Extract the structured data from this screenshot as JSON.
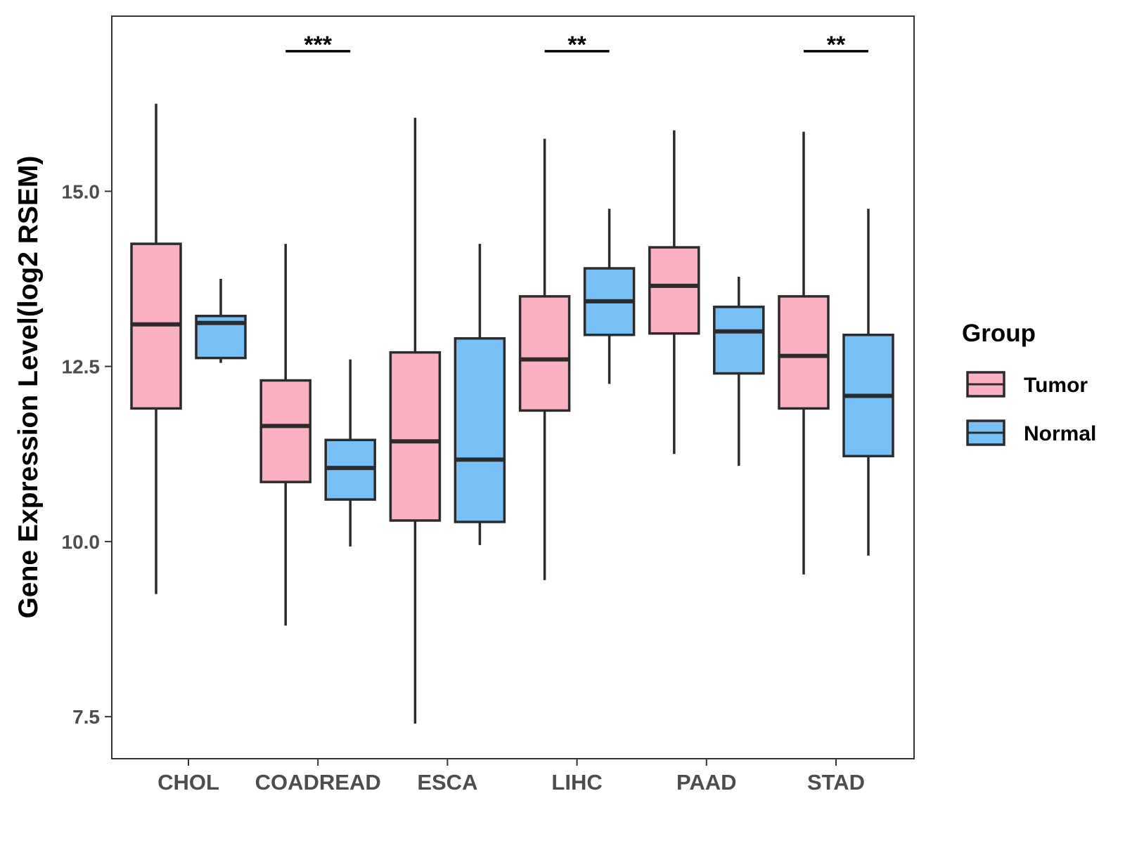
{
  "chart_data": {
    "type": "boxplot",
    "ylabel": "Gene Expression Level(log2 RSEM)",
    "xlabel": "",
    "ylim": [
      6.9,
      17.5
    ],
    "yticks": [
      7.5,
      10.0,
      12.5,
      15.0
    ],
    "ytick_labels": [
      "7.5",
      "10.0",
      "12.5",
      "15.0"
    ],
    "categories": [
      "CHOL",
      "COADREAD",
      "ESCA",
      "LIHC",
      "PAAD",
      "STAD"
    ],
    "legend": {
      "title": "Group",
      "position": "right",
      "entries": [
        {
          "name": "Tumor",
          "color": "#FBB1C1"
        },
        {
          "name": "Normal",
          "color": "#76C0F6"
        }
      ]
    },
    "series": [
      {
        "name": "Tumor",
        "color": "#FBB1C1",
        "boxes": [
          {
            "whisker_low": 9.25,
            "q1": 11.9,
            "median": 13.1,
            "q3": 14.25,
            "whisker_high": 16.25
          },
          {
            "whisker_low": 8.8,
            "q1": 10.85,
            "median": 11.65,
            "q3": 12.3,
            "whisker_high": 14.25
          },
          {
            "whisker_low": 7.4,
            "q1": 10.3,
            "median": 11.43,
            "q3": 12.7,
            "whisker_high": 16.05
          },
          {
            "whisker_low": 9.45,
            "q1": 11.87,
            "median": 12.6,
            "q3": 13.5,
            "whisker_high": 15.75
          },
          {
            "whisker_low": 11.25,
            "q1": 12.97,
            "median": 13.65,
            "q3": 14.2,
            "whisker_high": 15.87
          },
          {
            "whisker_low": 9.53,
            "q1": 11.9,
            "median": 12.65,
            "q3": 13.5,
            "whisker_high": 15.85
          }
        ]
      },
      {
        "name": "Normal",
        "color": "#76C0F6",
        "boxes": [
          {
            "whisker_low": 12.55,
            "q1": 12.62,
            "median": 13.12,
            "q3": 13.22,
            "whisker_high": 13.75
          },
          {
            "whisker_low": 9.93,
            "q1": 10.6,
            "median": 11.05,
            "q3": 11.45,
            "whisker_high": 12.6
          },
          {
            "whisker_low": 9.95,
            "q1": 10.28,
            "median": 11.17,
            "q3": 12.9,
            "whisker_high": 14.25
          },
          {
            "whisker_low": 12.25,
            "q1": 12.95,
            "median": 13.43,
            "q3": 13.9,
            "whisker_high": 14.75
          },
          {
            "whisker_low": 11.08,
            "q1": 12.4,
            "median": 13.0,
            "q3": 13.35,
            "whisker_high": 13.78
          },
          {
            "whisker_low": 9.8,
            "q1": 11.22,
            "median": 12.08,
            "q3": 12.95,
            "whisker_high": 14.75
          }
        ]
      }
    ],
    "significance": [
      {
        "category": "COADREAD",
        "label": "***",
        "y": 17.0
      },
      {
        "category": "LIHC",
        "label": "**",
        "y": 17.0
      },
      {
        "category": "STAD",
        "label": "**",
        "y": 17.0
      }
    ]
  }
}
